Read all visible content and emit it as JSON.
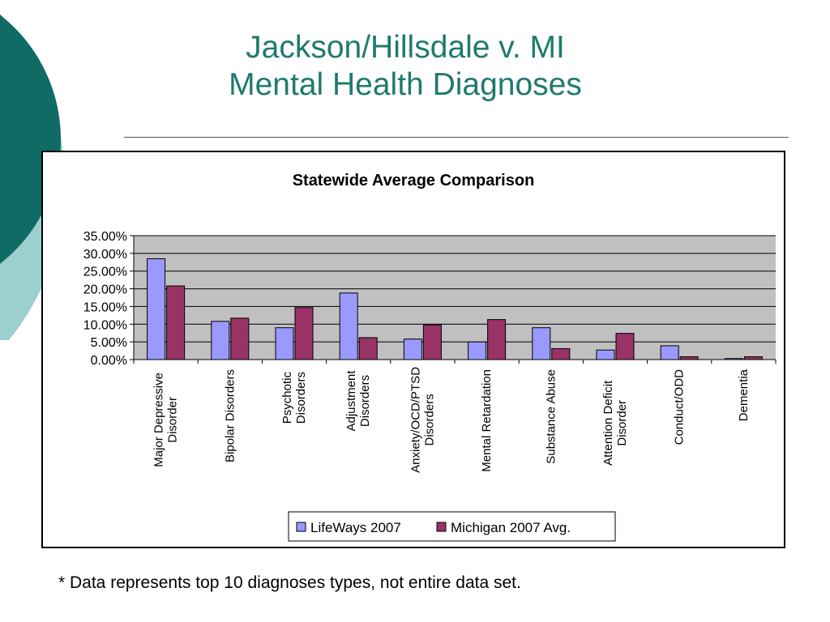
{
  "slide": {
    "title_line1": "Jackson/Hillsdale v. MI",
    "title_line2": "Mental Health Diagnoses",
    "footnote": "* Data represents top 10 diagnoses types, not entire data set."
  },
  "colors": {
    "title": "#1f7a6e",
    "deco_dark": "#0f6b63",
    "deco_light": "#9ccfcf",
    "plot_bg": "#c0c0c0",
    "series_1": "#9999ff",
    "series_2": "#993366"
  },
  "chart_data": {
    "type": "bar",
    "title": "Statewide Average Comparison",
    "xlabel": "",
    "ylabel": "",
    "ylim": [
      0,
      35
    ],
    "y_ticks": [
      "0.00%",
      "5.00%",
      "10.00%",
      "15.00%",
      "20.00%",
      "25.00%",
      "30.00%",
      "35.00%"
    ],
    "grid": true,
    "legend_position": "bottom",
    "categories": [
      [
        "Major Depressive",
        "Disorder"
      ],
      [
        "Bipolar Disorders"
      ],
      [
        "Psychotic",
        "Disorders"
      ],
      [
        "Adjustment",
        "Disorders"
      ],
      [
        "Anxiety/OCD/PTSD",
        "Disorders"
      ],
      [
        "Mental Retardation"
      ],
      [
        "Substance Abuse"
      ],
      [
        "Attention Deficit",
        "Disorder"
      ],
      [
        "Conduct/ODD"
      ],
      [
        "Dementia"
      ]
    ],
    "series": [
      {
        "name": "LifeWays 2007",
        "values": [
          28.5,
          10.8,
          9.0,
          18.8,
          5.8,
          5.0,
          9.0,
          2.7,
          3.9,
          0.3
        ]
      },
      {
        "name": "Michigan 2007 Avg.",
        "values": [
          20.8,
          11.7,
          14.7,
          6.2,
          9.8,
          11.3,
          3.1,
          7.4,
          0.8,
          0.8
        ]
      }
    ]
  }
}
